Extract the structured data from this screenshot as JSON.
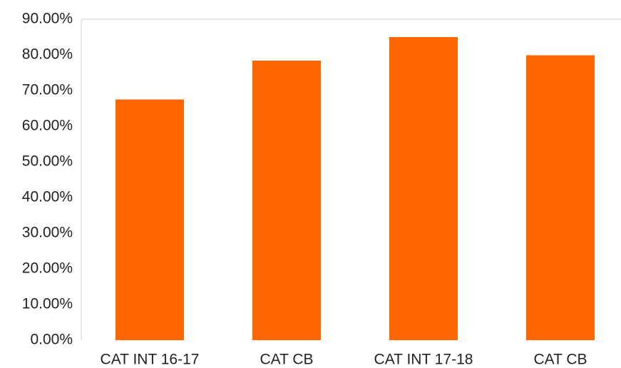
{
  "chart_data": {
    "type": "bar",
    "categories": [
      "CAT INT 16-17",
      "CAT CB",
      "CAT INT 17-18",
      "CAT CB"
    ],
    "values": [
      67.5,
      78.4,
      85,
      79.9
    ],
    "color": "#ff6600",
    "ylim": [
      0,
      90
    ],
    "yticks": [
      {
        "value": 0,
        "label": "0.00%"
      },
      {
        "value": 10,
        "label": "10.00%"
      },
      {
        "value": 20,
        "label": "20.00%"
      },
      {
        "value": 30,
        "label": "30.00%"
      },
      {
        "value": 40,
        "label": "40.00%"
      },
      {
        "value": 50,
        "label": "50.00%"
      },
      {
        "value": 60,
        "label": "60.00%"
      },
      {
        "value": 70,
        "label": "70.00%"
      },
      {
        "value": 80,
        "label": "80.00%"
      },
      {
        "value": 90,
        "label": "90.00%"
      }
    ],
    "grid": false
  }
}
